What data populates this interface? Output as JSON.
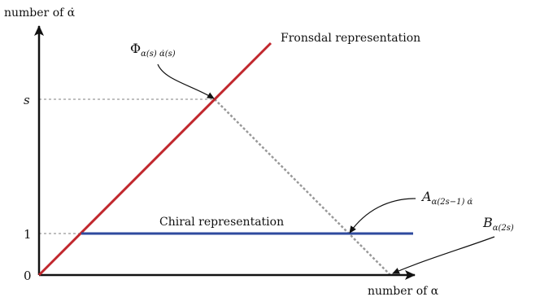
{
  "axes": {
    "y_title": "number of α̇",
    "x_title": "number of α"
  },
  "ticks": {
    "zero": "0",
    "one": "1",
    "s": "s"
  },
  "lines": {
    "fronsdal": {
      "label": "Fronsdal representation",
      "color": "#c1272d"
    },
    "chiral": {
      "label": "Chiral representation",
      "color": "#2e4a9e"
    },
    "guide_color": "#999999"
  },
  "annotations": {
    "phi": {
      "base": "Φ",
      "sub": "α(s) α̇(s)"
    },
    "a": {
      "base": "A",
      "sub": "α(2s−1) α̇"
    },
    "b": {
      "base": "B",
      "sub": "α(2s)"
    }
  }
}
